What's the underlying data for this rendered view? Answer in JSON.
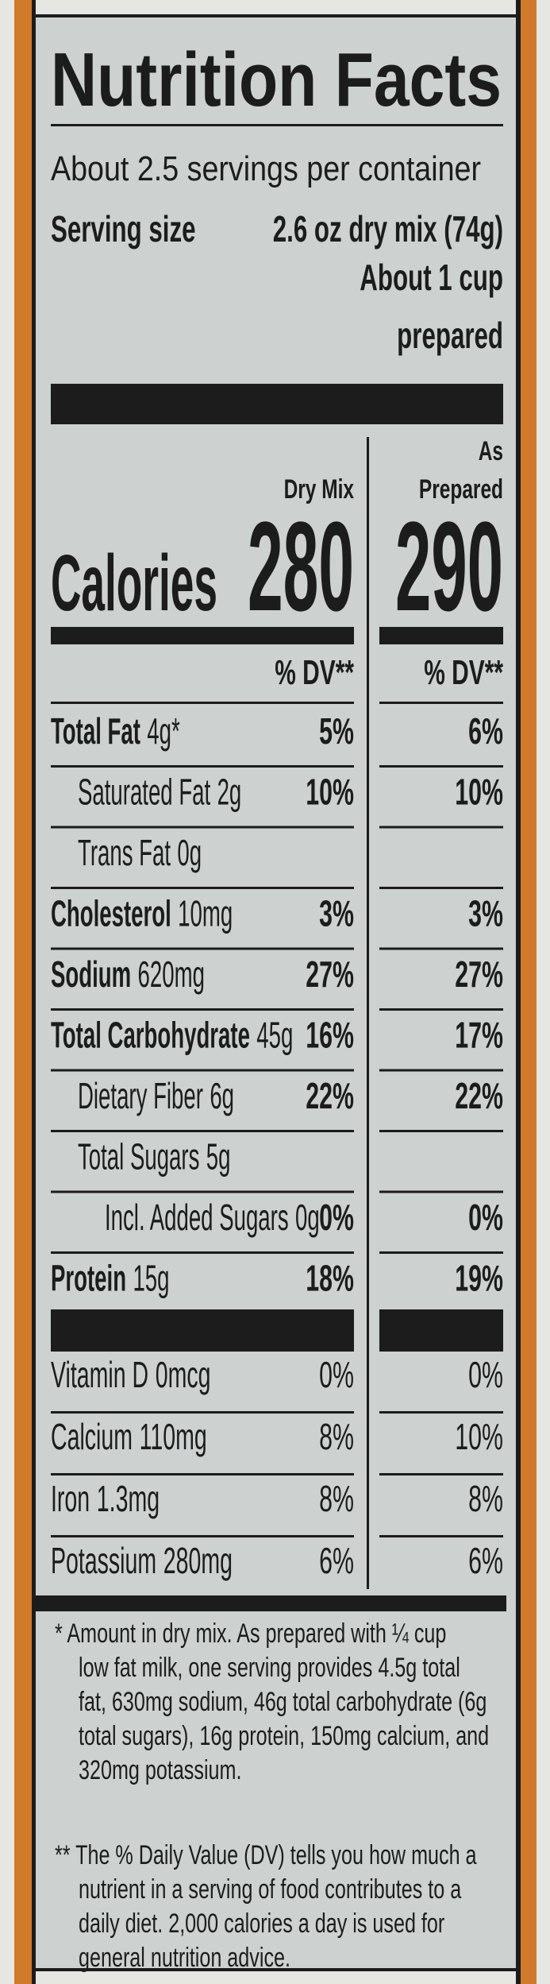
{
  "title": "Nutrition Facts",
  "servings": "About 2.5 servings per container",
  "serving_size": {
    "label": "Serving size",
    "value": "2.6 oz dry mix (74g)",
    "prepared_lines": [
      "About 1 cup",
      "prepared"
    ]
  },
  "columns": {
    "dry": "Dry Mix",
    "prepared": [
      "As",
      "Prepared"
    ]
  },
  "calories": {
    "label": "Calories",
    "dry": "280",
    "prepared": "290"
  },
  "dv_header": "% DV**",
  "rows": [
    {
      "name": "Total Fat",
      "amount": "4g*",
      "dry": "5%",
      "prepared": "6%"
    },
    {
      "name": "Saturated Fat",
      "amount": "2g",
      "dry": "10%",
      "prepared": "10%"
    },
    {
      "name": "Trans Fat",
      "amount": "0g"
    },
    {
      "name": "Cholesterol",
      "amount": "10mg",
      "dry": "3%",
      "prepared": "3%"
    },
    {
      "name": "Sodium",
      "amount": "620mg",
      "dry": "27%",
      "prepared": "27%"
    },
    {
      "name": "Total Carbohydrate",
      "amount": "45g",
      "dry": "16%",
      "prepared": "17%"
    },
    {
      "name": "Dietary Fiber",
      "amount": "6g",
      "dry": "22%",
      "prepared": "22%"
    },
    {
      "name": "Total Sugars",
      "amount": "5g"
    },
    {
      "name": "Incl. Added Sugars",
      "amount": "0g",
      "dry": "0%",
      "prepared": "0%"
    },
    {
      "name": "Protein",
      "amount": "15g",
      "dry": "18%",
      "prepared": "19%"
    }
  ],
  "vitamins": [
    {
      "name": "Vitamin D",
      "amount": "0mcg",
      "dry": "0%",
      "prepared": "0%"
    },
    {
      "name": "Calcium",
      "amount": "110mg",
      "dry": "8%",
      "prepared": "10%"
    },
    {
      "name": "Iron",
      "amount": "1.3mg",
      "dry": "8%",
      "prepared": "8%"
    },
    {
      "name": "Potassium",
      "amount": "280mg",
      "dry": "6%",
      "prepared": "6%"
    }
  ],
  "footnotes": [
    {
      "lines": [
        "* Amount in dry mix. As prepared with ¼ cup",
        "low fat milk, one serving provides 4.5g total",
        "fat, 630mg sodium, 46g total carbohydrate (6g",
        "total sugars), 16g protein, 150mg calcium, and",
        "320mg potassium."
      ]
    },
    {
      "lines": [
        "** The % Daily Value (DV) tells you how much a",
        "nutrient in a serving of food contributes to a",
        "daily diet. 2,000 calories a day is used for",
        "general nutrition advice."
      ]
    }
  ]
}
